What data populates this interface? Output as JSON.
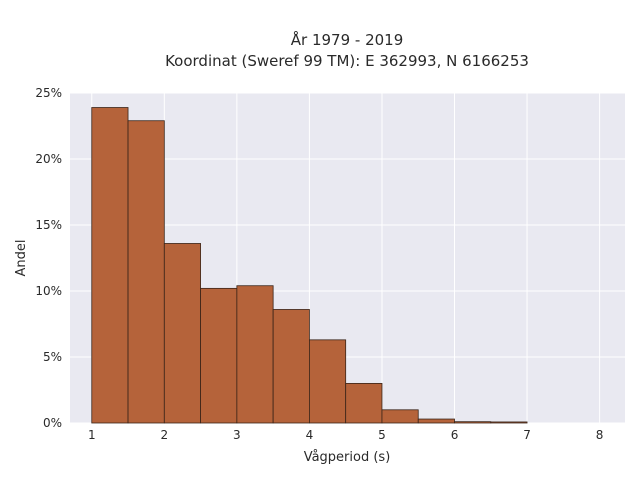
{
  "chart_data": {
    "type": "bar",
    "title": "År 1979 - 2019",
    "subtitle": "Koordinat (Sweref 99 TM): E 362993, N 6166253",
    "xlabel": "Vågperiod (s)",
    "ylabel": "Andel",
    "xlim": [
      0.7,
      8.35
    ],
    "ylim": [
      0,
      25
    ],
    "x_ticks": [
      1,
      2,
      3,
      4,
      5,
      6,
      7,
      8
    ],
    "x_tick_labels": [
      "1",
      "2",
      "3",
      "4",
      "5",
      "6",
      "7",
      "8"
    ],
    "y_ticks": [
      0,
      5,
      10,
      15,
      20,
      25
    ],
    "y_tick_labels": [
      "0%",
      "5%",
      "10%",
      "15%",
      "20%",
      "25%"
    ],
    "bin_width": 0.5,
    "bins": [
      {
        "start": 1.0,
        "value": 23.9
      },
      {
        "start": 1.5,
        "value": 22.9
      },
      {
        "start": 2.0,
        "value": 13.6
      },
      {
        "start": 2.5,
        "value": 10.2
      },
      {
        "start": 3.0,
        "value": 10.4
      },
      {
        "start": 3.5,
        "value": 8.6
      },
      {
        "start": 4.0,
        "value": 6.3
      },
      {
        "start": 4.5,
        "value": 3.0
      },
      {
        "start": 5.0,
        "value": 1.0
      },
      {
        "start": 5.5,
        "value": 0.3
      },
      {
        "start": 6.0,
        "value": 0.1
      },
      {
        "start": 6.5,
        "value": 0.08
      }
    ],
    "grid": true,
    "colors": {
      "bar_fill": "#b5633a",
      "bar_stroke": "#3a2418",
      "plot_bg": "#e9e9f1",
      "grid": "#ffffff"
    }
  }
}
